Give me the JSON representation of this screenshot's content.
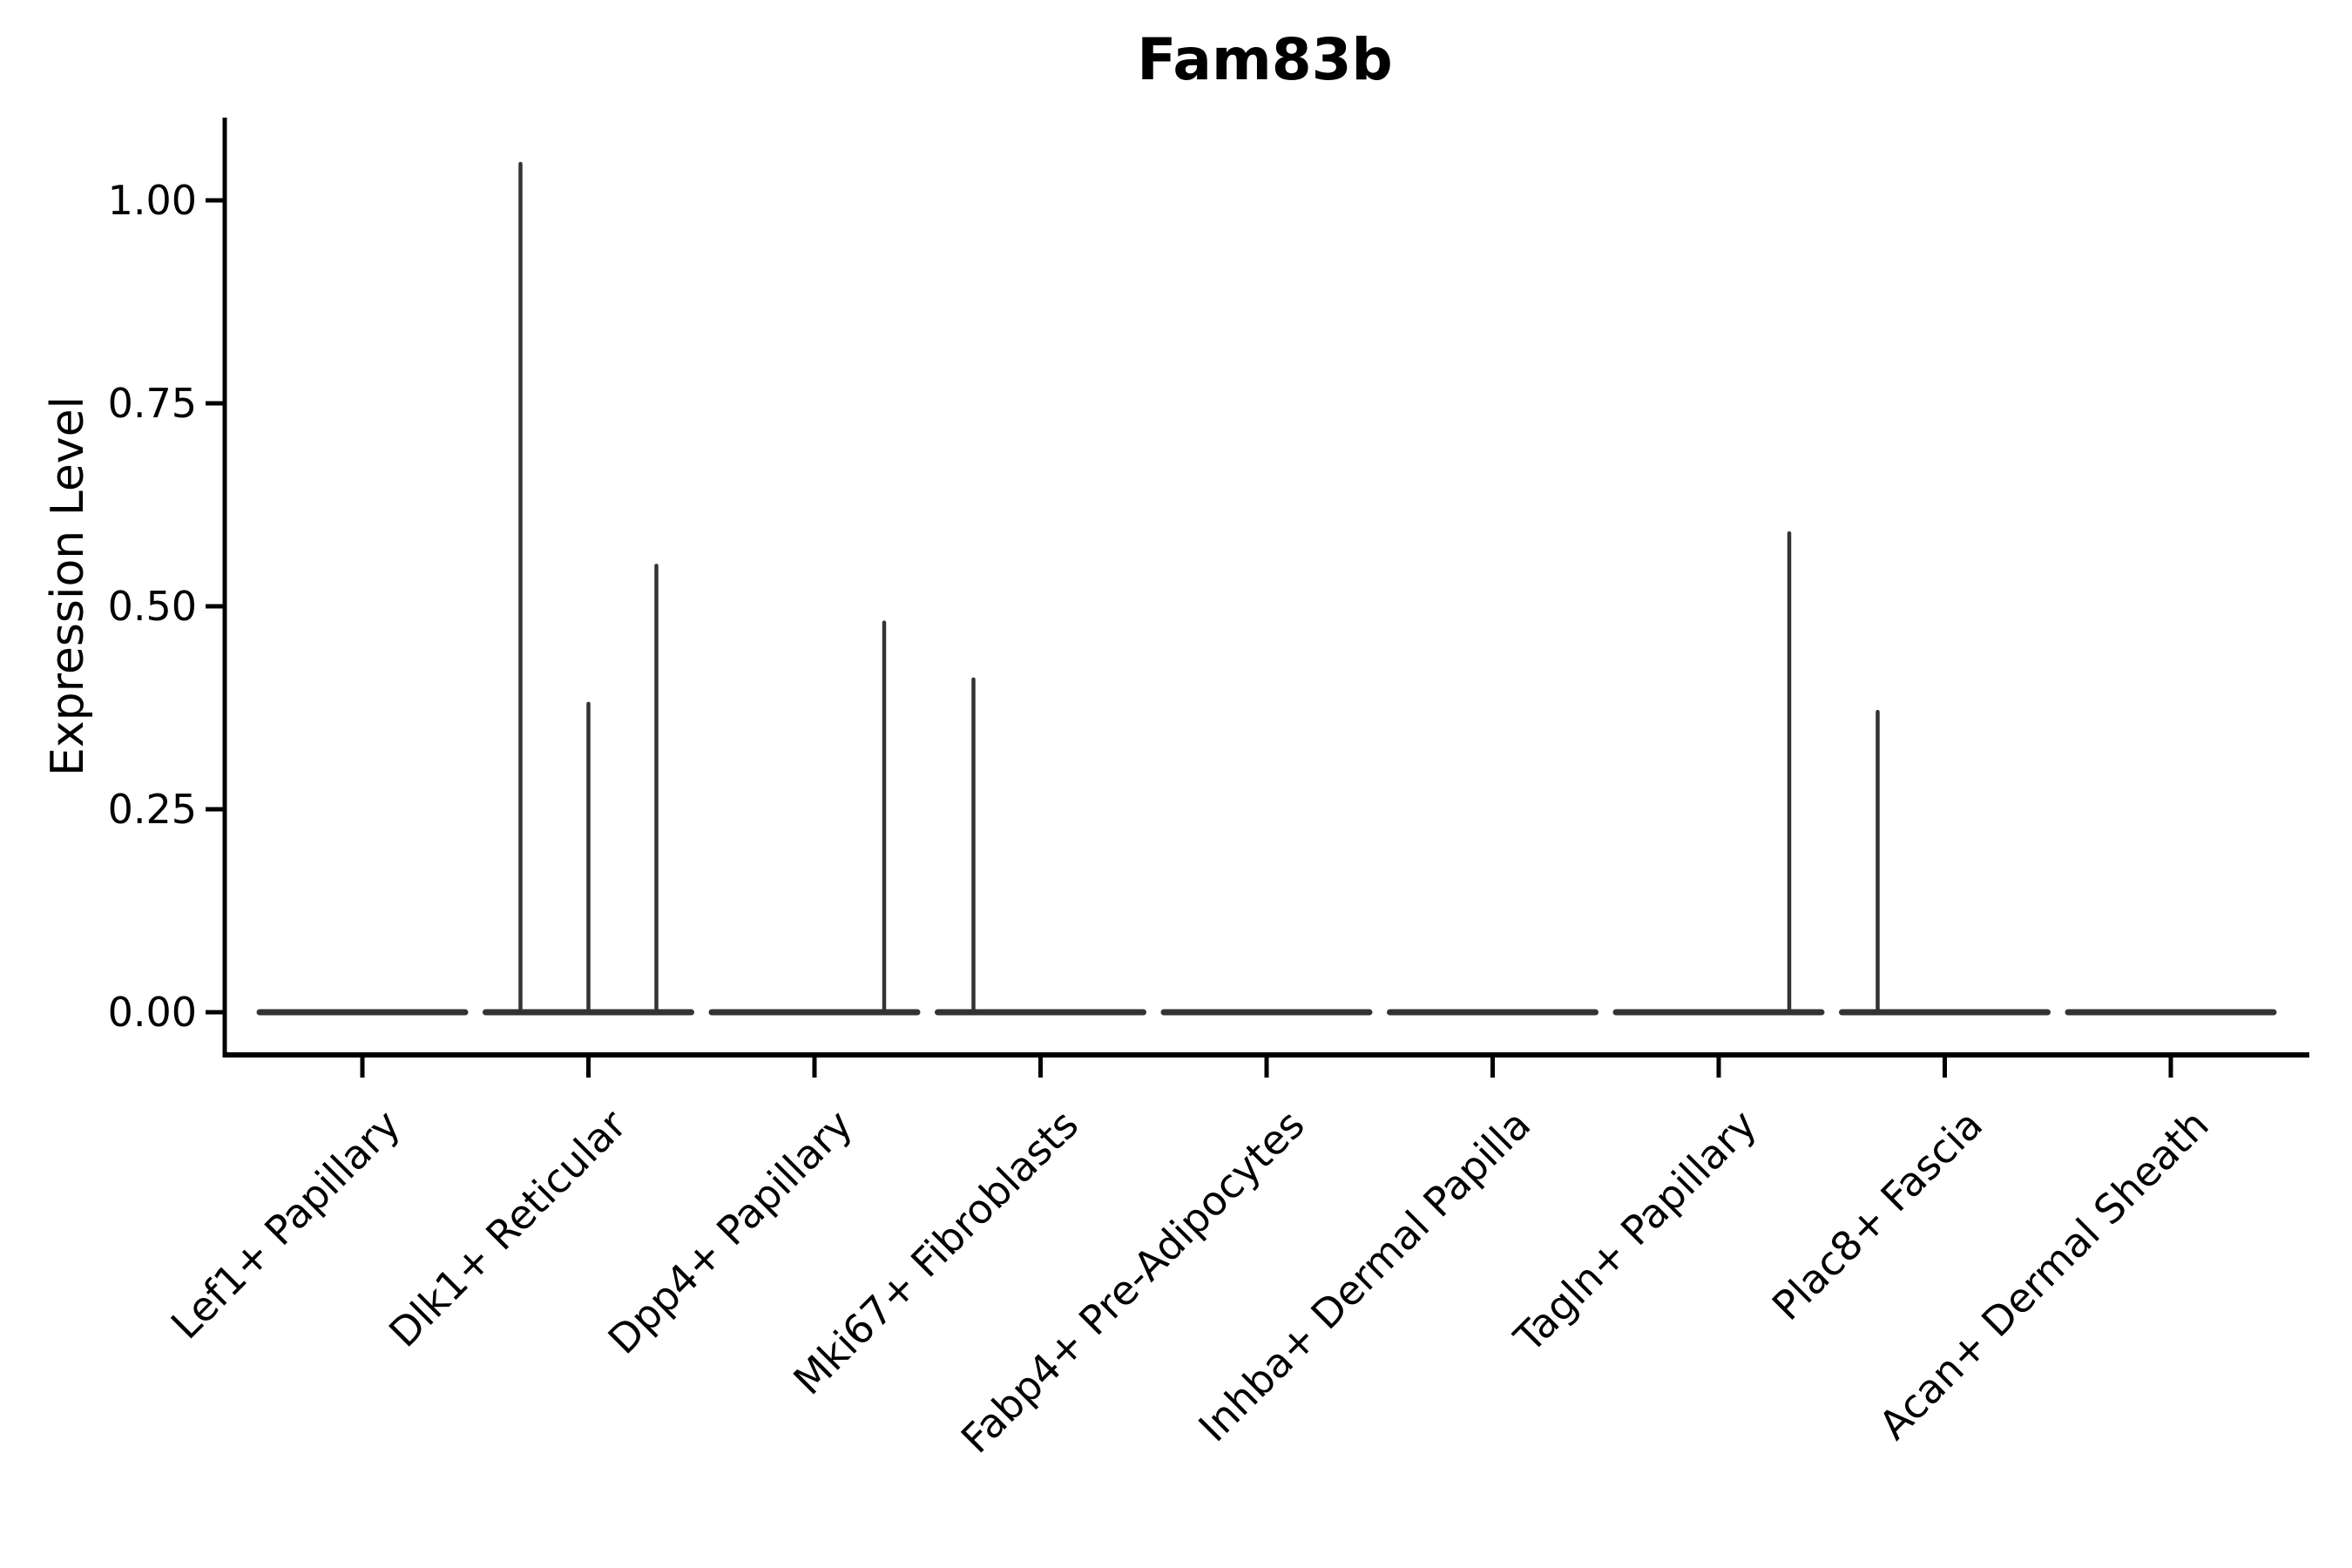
{
  "title": "Fam83b",
  "chart_data": {
    "type": "violin",
    "title": "Fam83b",
    "xlabel": "",
    "ylabel": "Expression Level",
    "ylim": [
      -0.05,
      1.1
    ],
    "grid": false,
    "legend_position": "none",
    "yticks": [
      0,
      0.25,
      0.5,
      0.75,
      1.0
    ],
    "ytick_labels": [
      "0.00",
      "0.25",
      "0.50",
      "0.75",
      "1.00"
    ],
    "categories": [
      "Lef1+ Papillary",
      "Dlk1+ Reticular",
      "Dpp4+ Papillary",
      "Mki67+ Fibroblasts",
      "Fabp4+ Pre-Adipocytes",
      "Inhba+ Dermal Papilla",
      "Tagln+ Papillary",
      "Plac8+ Fascia",
      "Acan+ Dermal Sheath"
    ],
    "violins": [
      {
        "category": "Lef1+ Papillary",
        "baseline_value": 0,
        "max_value": 0,
        "spikes": []
      },
      {
        "category": "Dlk1+ Reticular",
        "baseline_value": 0,
        "max_value": 1.045,
        "spikes": [
          {
            "dx": -78,
            "value": 1.045
          },
          {
            "dx": 0,
            "value": 0.38
          },
          {
            "dx": 78,
            "value": 0.55
          }
        ]
      },
      {
        "category": "Dpp4+ Papillary",
        "baseline_value": 0,
        "max_value": 0.48,
        "spikes": [
          {
            "dx": 80,
            "value": 0.48
          }
        ]
      },
      {
        "category": "Mki67+ Fibroblasts",
        "baseline_value": 0,
        "max_value": 0.41,
        "spikes": [
          {
            "dx": -77,
            "value": 0.41
          }
        ]
      },
      {
        "category": "Fabp4+ Pre-Adipocytes",
        "baseline_value": 0,
        "max_value": 0,
        "spikes": []
      },
      {
        "category": "Inhba+ Dermal Papilla",
        "baseline_value": 0,
        "max_value": 0,
        "spikes": []
      },
      {
        "category": "Tagln+ Papillary",
        "baseline_value": 0,
        "max_value": 0.59,
        "spikes": [
          {
            "dx": 81,
            "value": 0.59
          }
        ]
      },
      {
        "category": "Plac8+ Fascia",
        "baseline_value": 0,
        "max_value": 0.37,
        "spikes": [
          {
            "dx": -77,
            "value": 0.37
          }
        ]
      },
      {
        "category": "Acan+ Dermal Sheath",
        "baseline_value": 0,
        "max_value": 0,
        "spikes": []
      }
    ],
    "colors": {
      "violin_stroke": "#333333",
      "axis": "#000000",
      "text": "#000000",
      "background": "#ffffff"
    }
  }
}
